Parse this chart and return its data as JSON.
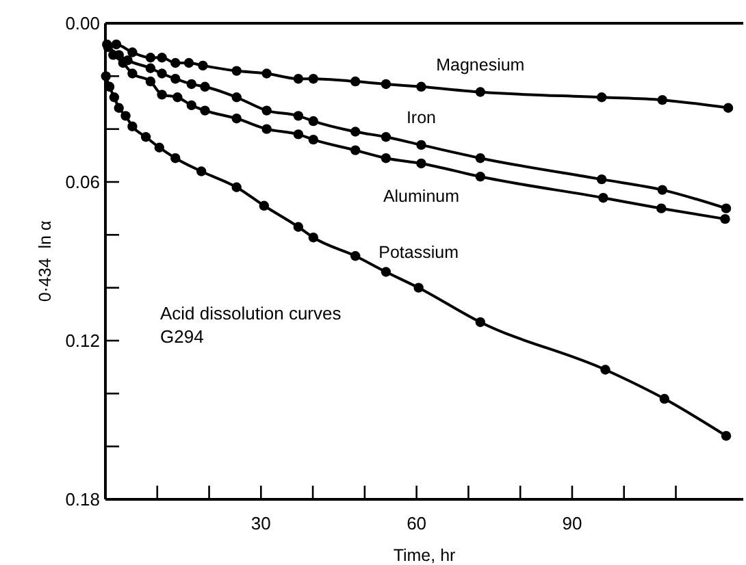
{
  "chart_data": {
    "type": "line",
    "xlabel": "Time, hr",
    "ylabel": "0·434  ln α",
    "annotations": [
      "Acid dissolution curves",
      "G294"
    ],
    "xlim": [
      0,
      123
    ],
    "ylim": [
      0.18,
      0
    ],
    "xticks": [
      {
        "value": 10,
        "label": null
      },
      {
        "value": 20,
        "label": null
      },
      30,
      {
        "value": 40,
        "label": null
      },
      {
        "value": 50,
        "label": null
      },
      60,
      {
        "value": 70,
        "label": null
      },
      {
        "value": 80,
        "label": null
      },
      90,
      {
        "value": 100,
        "label": null
      },
      {
        "value": 110,
        "label": null
      }
    ],
    "yticks": [
      {
        "value": 0,
        "label": "0.00"
      },
      {
        "value": 0.02,
        "label": null
      },
      {
        "value": 0.04,
        "label": null
      },
      {
        "value": 0.06,
        "label": "0.06"
      },
      {
        "value": 0.08,
        "label": null
      },
      {
        "value": 0.1,
        "label": null
      },
      {
        "value": 0.12,
        "label": "0.12"
      },
      {
        "value": 0.14,
        "label": null
      },
      {
        "value": 0.16,
        "label": null
      },
      {
        "value": 0.18,
        "label": "0.18"
      }
    ],
    "marker": "circle",
    "line_style": "solid",
    "grid": false,
    "legend": false,
    "series": [
      {
        "name": "Magnesium",
        "color": "#000000",
        "x": [
          0.3,
          2.1,
          5.2,
          8.7,
          10.9,
          13.5,
          16.1,
          18.8,
          25.3,
          31.1,
          37.2,
          40.1,
          48.2,
          54.1,
          60.9,
          72.3,
          95.7,
          107.4,
          120.1
        ],
        "values": [
          0.008,
          0.008,
          0.011,
          0.013,
          0.013,
          0.015,
          0.015,
          0.016,
          0.018,
          0.019,
          0.021,
          0.021,
          0.022,
          0.023,
          0.024,
          0.026,
          0.028,
          0.029,
          0.032
        ]
      },
      {
        "name": "Iron",
        "color": "#000000",
        "x": [
          0.5,
          2.6,
          4.3,
          8.7,
          10.9,
          13.5,
          16.6,
          19.2,
          25.3,
          31.1,
          37.2,
          40.1,
          48.2,
          54.1,
          60.9,
          72.3,
          95.7,
          107.4,
          119.7
        ],
        "values": [
          0.009,
          0.012,
          0.014,
          0.017,
          0.019,
          0.021,
          0.023,
          0.024,
          0.028,
          0.033,
          0.035,
          0.037,
          0.041,
          0.043,
          0.046,
          0.051,
          0.059,
          0.063,
          0.07
        ]
      },
      {
        "name": "Aluminum",
        "color": "#000000",
        "x": [
          1.5,
          3.4,
          5.2,
          8.7,
          10.9,
          13.9,
          16.6,
          19.2,
          25.3,
          31.1,
          37.2,
          40.1,
          48.2,
          54.1,
          60.9,
          72.3,
          96,
          107.2,
          119.5
        ],
        "values": [
          0.012,
          0.015,
          0.019,
          0.022,
          0.027,
          0.028,
          0.031,
          0.033,
          0.036,
          0.04,
          0.042,
          0.044,
          0.048,
          0.051,
          0.053,
          0.058,
          0.066,
          0.07,
          0.074
        ]
      },
      {
        "name": "Potassium",
        "color": "#000000",
        "x": [
          0.1,
          0.8,
          1.7,
          2.6,
          3.9,
          5.2,
          7.8,
          10.4,
          13.5,
          18.5,
          25.3,
          30.6,
          37.2,
          40.1,
          48.2,
          54.1,
          60.4,
          72.3,
          96.4,
          107.8,
          119.7
        ],
        "values": [
          0.02,
          0.024,
          0.028,
          0.032,
          0.035,
          0.039,
          0.043,
          0.047,
          0.051,
          0.056,
          0.062,
          0.069,
          0.077,
          0.081,
          0.088,
          0.094,
          0.1,
          0.113,
          0.131,
          0.142,
          0.156
        ]
      }
    ]
  }
}
